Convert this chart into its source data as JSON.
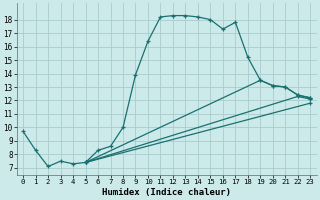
{
  "xlabel": "Humidex (Indice chaleur)",
  "bg_color": "#cdeaea",
  "grid_color": "#aacccc",
  "line_color": "#1a7070",
  "xlim": [
    -0.5,
    23.5
  ],
  "ylim": [
    6.5,
    19.2
  ],
  "xticks": [
    0,
    1,
    2,
    3,
    4,
    5,
    6,
    7,
    8,
    9,
    10,
    11,
    12,
    13,
    14,
    15,
    16,
    17,
    18,
    19,
    20,
    21,
    22,
    23
  ],
  "yticks": [
    7,
    8,
    9,
    10,
    11,
    12,
    13,
    14,
    15,
    16,
    17,
    18
  ],
  "main_series": {
    "x": [
      0,
      1,
      2,
      3,
      4,
      5,
      6,
      7,
      8,
      9,
      10,
      11,
      12,
      13,
      14,
      15,
      16,
      17,
      18,
      19,
      20,
      21,
      22,
      23
    ],
    "y": [
      9.7,
      8.3,
      7.1,
      7.5,
      7.3,
      7.4,
      8.3,
      8.6,
      10.0,
      13.9,
      16.4,
      18.2,
      18.3,
      18.3,
      18.2,
      18.0,
      17.3,
      17.8,
      15.2,
      13.5,
      13.1,
      13.0,
      12.4,
      12.2
    ]
  },
  "straight_lines": [
    {
      "x": [
        5,
        19,
        20,
        21,
        22,
        23
      ],
      "y": [
        7.4,
        13.5,
        13.1,
        13.0,
        12.4,
        12.2
      ]
    },
    {
      "x": [
        5,
        22,
        23
      ],
      "y": [
        7.4,
        12.3,
        12.1
      ]
    },
    {
      "x": [
        5,
        23
      ],
      "y": [
        7.4,
        11.8
      ]
    }
  ]
}
